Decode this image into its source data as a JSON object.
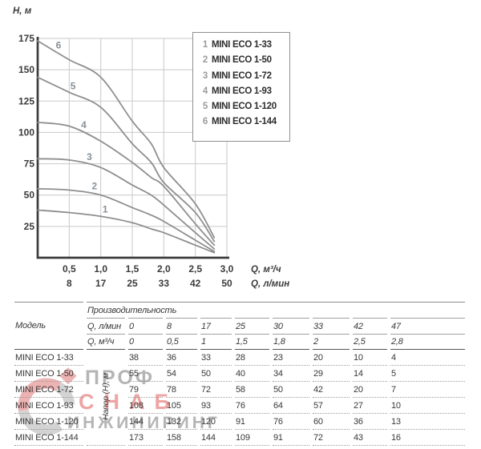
{
  "chart": {
    "y_axis_title": "H, м",
    "x_axis_title_primary": "Q, м³/ч",
    "x_axis_title_secondary": "Q, л/мин",
    "y_ticks": [
      25,
      50,
      75,
      100,
      125,
      150,
      175
    ],
    "x_ticks_primary": [
      "0,5",
      "1,0",
      "1,5",
      "2,0",
      "2,5",
      "3,0"
    ],
    "x_ticks_secondary": [
      "8",
      "17",
      "25",
      "33",
      "42",
      "50"
    ],
    "legend_items": [
      {
        "num": "1",
        "label": "MINI ECO 1-33"
      },
      {
        "num": "2",
        "label": "MINI ECO 1-50"
      },
      {
        "num": "3",
        "label": "MINI ECO 1-72"
      },
      {
        "num": "4",
        "label": "MINI ECO 1-93"
      },
      {
        "num": "5",
        "label": "MINI ECO 1-120"
      },
      {
        "num": "6",
        "label": "MINI ECO 1-144"
      }
    ]
  },
  "chart_data": {
    "type": "line",
    "x": [
      0,
      0.5,
      1,
      1.5,
      1.8,
      2,
      2.5,
      2.8
    ],
    "x_units": "Q, м³/ч",
    "x_secondary": [
      0,
      8,
      17,
      25,
      30,
      33,
      42,
      47
    ],
    "x_secondary_units": "Q, л/мин",
    "series": [
      {
        "curve": "1",
        "name": "MINI ECO 1-33",
        "values": [
          38,
          36,
          33,
          28,
          23,
          20,
          10,
          4
        ],
        "label_q": 1.07
      },
      {
        "curve": "2",
        "name": "MINI ECO 1-50",
        "values": [
          55,
          54,
          50,
          40,
          34,
          29,
          14,
          5
        ],
        "label_q": 0.9
      },
      {
        "curve": "3",
        "name": "MINI ECO 1-72",
        "values": [
          79,
          78,
          72,
          58,
          50,
          42,
          20,
          7
        ],
        "label_q": 0.82
      },
      {
        "curve": "4",
        "name": "MINI ECO 1-93",
        "values": [
          108,
          105,
          93,
          76,
          64,
          57,
          27,
          10
        ],
        "label_q": 0.73
      },
      {
        "curve": "5",
        "name": "MINI ECO 1-120",
        "values": [
          144,
          132,
          120,
          91,
          76,
          60,
          36,
          13
        ],
        "label_q": 0.56
      },
      {
        "curve": "6",
        "name": "MINI ECO 1-144",
        "values": [
          173,
          158,
          144,
          109,
          91,
          72,
          43,
          16
        ],
        "label_q": 0.33
      }
    ],
    "title": "",
    "xlabel": "Q, м³/ч",
    "ylabel": "H, м",
    "xlim": [
      0,
      3
    ],
    "ylim": [
      0,
      175
    ],
    "grid": true,
    "legend_position": "top-right"
  },
  "table": {
    "model_header": "Модель",
    "group_header": "Производительность",
    "flow_lmin_label": "Q, л/мин",
    "flow_m3h_label": "Q, м³/ч",
    "flow_lmin_values": [
      "0",
      "8",
      "17",
      "25",
      "30",
      "33",
      "42",
      "47"
    ],
    "flow_m3h_values": [
      "0",
      "0,5",
      "1",
      "1,5",
      "1,8",
      "2",
      "2,5",
      "2,8"
    ],
    "head_pressure_label": "Напор (H), м",
    "rows": [
      {
        "model": "MINI ECO 1-33",
        "values": [
          38,
          36,
          33,
          28,
          23,
          20,
          10,
          4
        ]
      },
      {
        "model": "MINI ECO 1-50",
        "values": [
          55,
          54,
          50,
          40,
          34,
          29,
          14,
          5
        ]
      },
      {
        "model": "MINI ECO 1-72",
        "values": [
          79,
          78,
          72,
          58,
          50,
          42,
          20,
          7
        ]
      },
      {
        "model": "MINI ECO 1-93",
        "values": [
          108,
          105,
          93,
          76,
          64,
          57,
          27,
          10
        ]
      },
      {
        "model": "MINI ECO 1-120",
        "values": [
          144,
          132,
          120,
          91,
          76,
          60,
          36,
          13
        ]
      },
      {
        "model": "MINI ECO 1-144",
        "values": [
          173,
          158,
          144,
          109,
          91,
          72,
          43,
          16
        ]
      }
    ]
  },
  "watermark": {
    "line1": "ПРОФ",
    "line2": "СНАБ",
    "line3": "ИНЖИНИРИНГ"
  },
  "colors": {
    "curve": "#8f8f8f",
    "grid": "#c9c9c9",
    "axis": "#3d3d3d",
    "tick_text": "#3b3b3b",
    "curve_label": "#87909a",
    "legend_border": "#8f8f8f",
    "legend_num": "#9b9b9b",
    "legend_text": "#2c2c2c",
    "table_text": "#383838",
    "rule_dark": "#565656",
    "rule_light": "#a0a0a0",
    "watermark_gray": "#b5b5b5",
    "watermark_red": "#eda4a4"
  }
}
